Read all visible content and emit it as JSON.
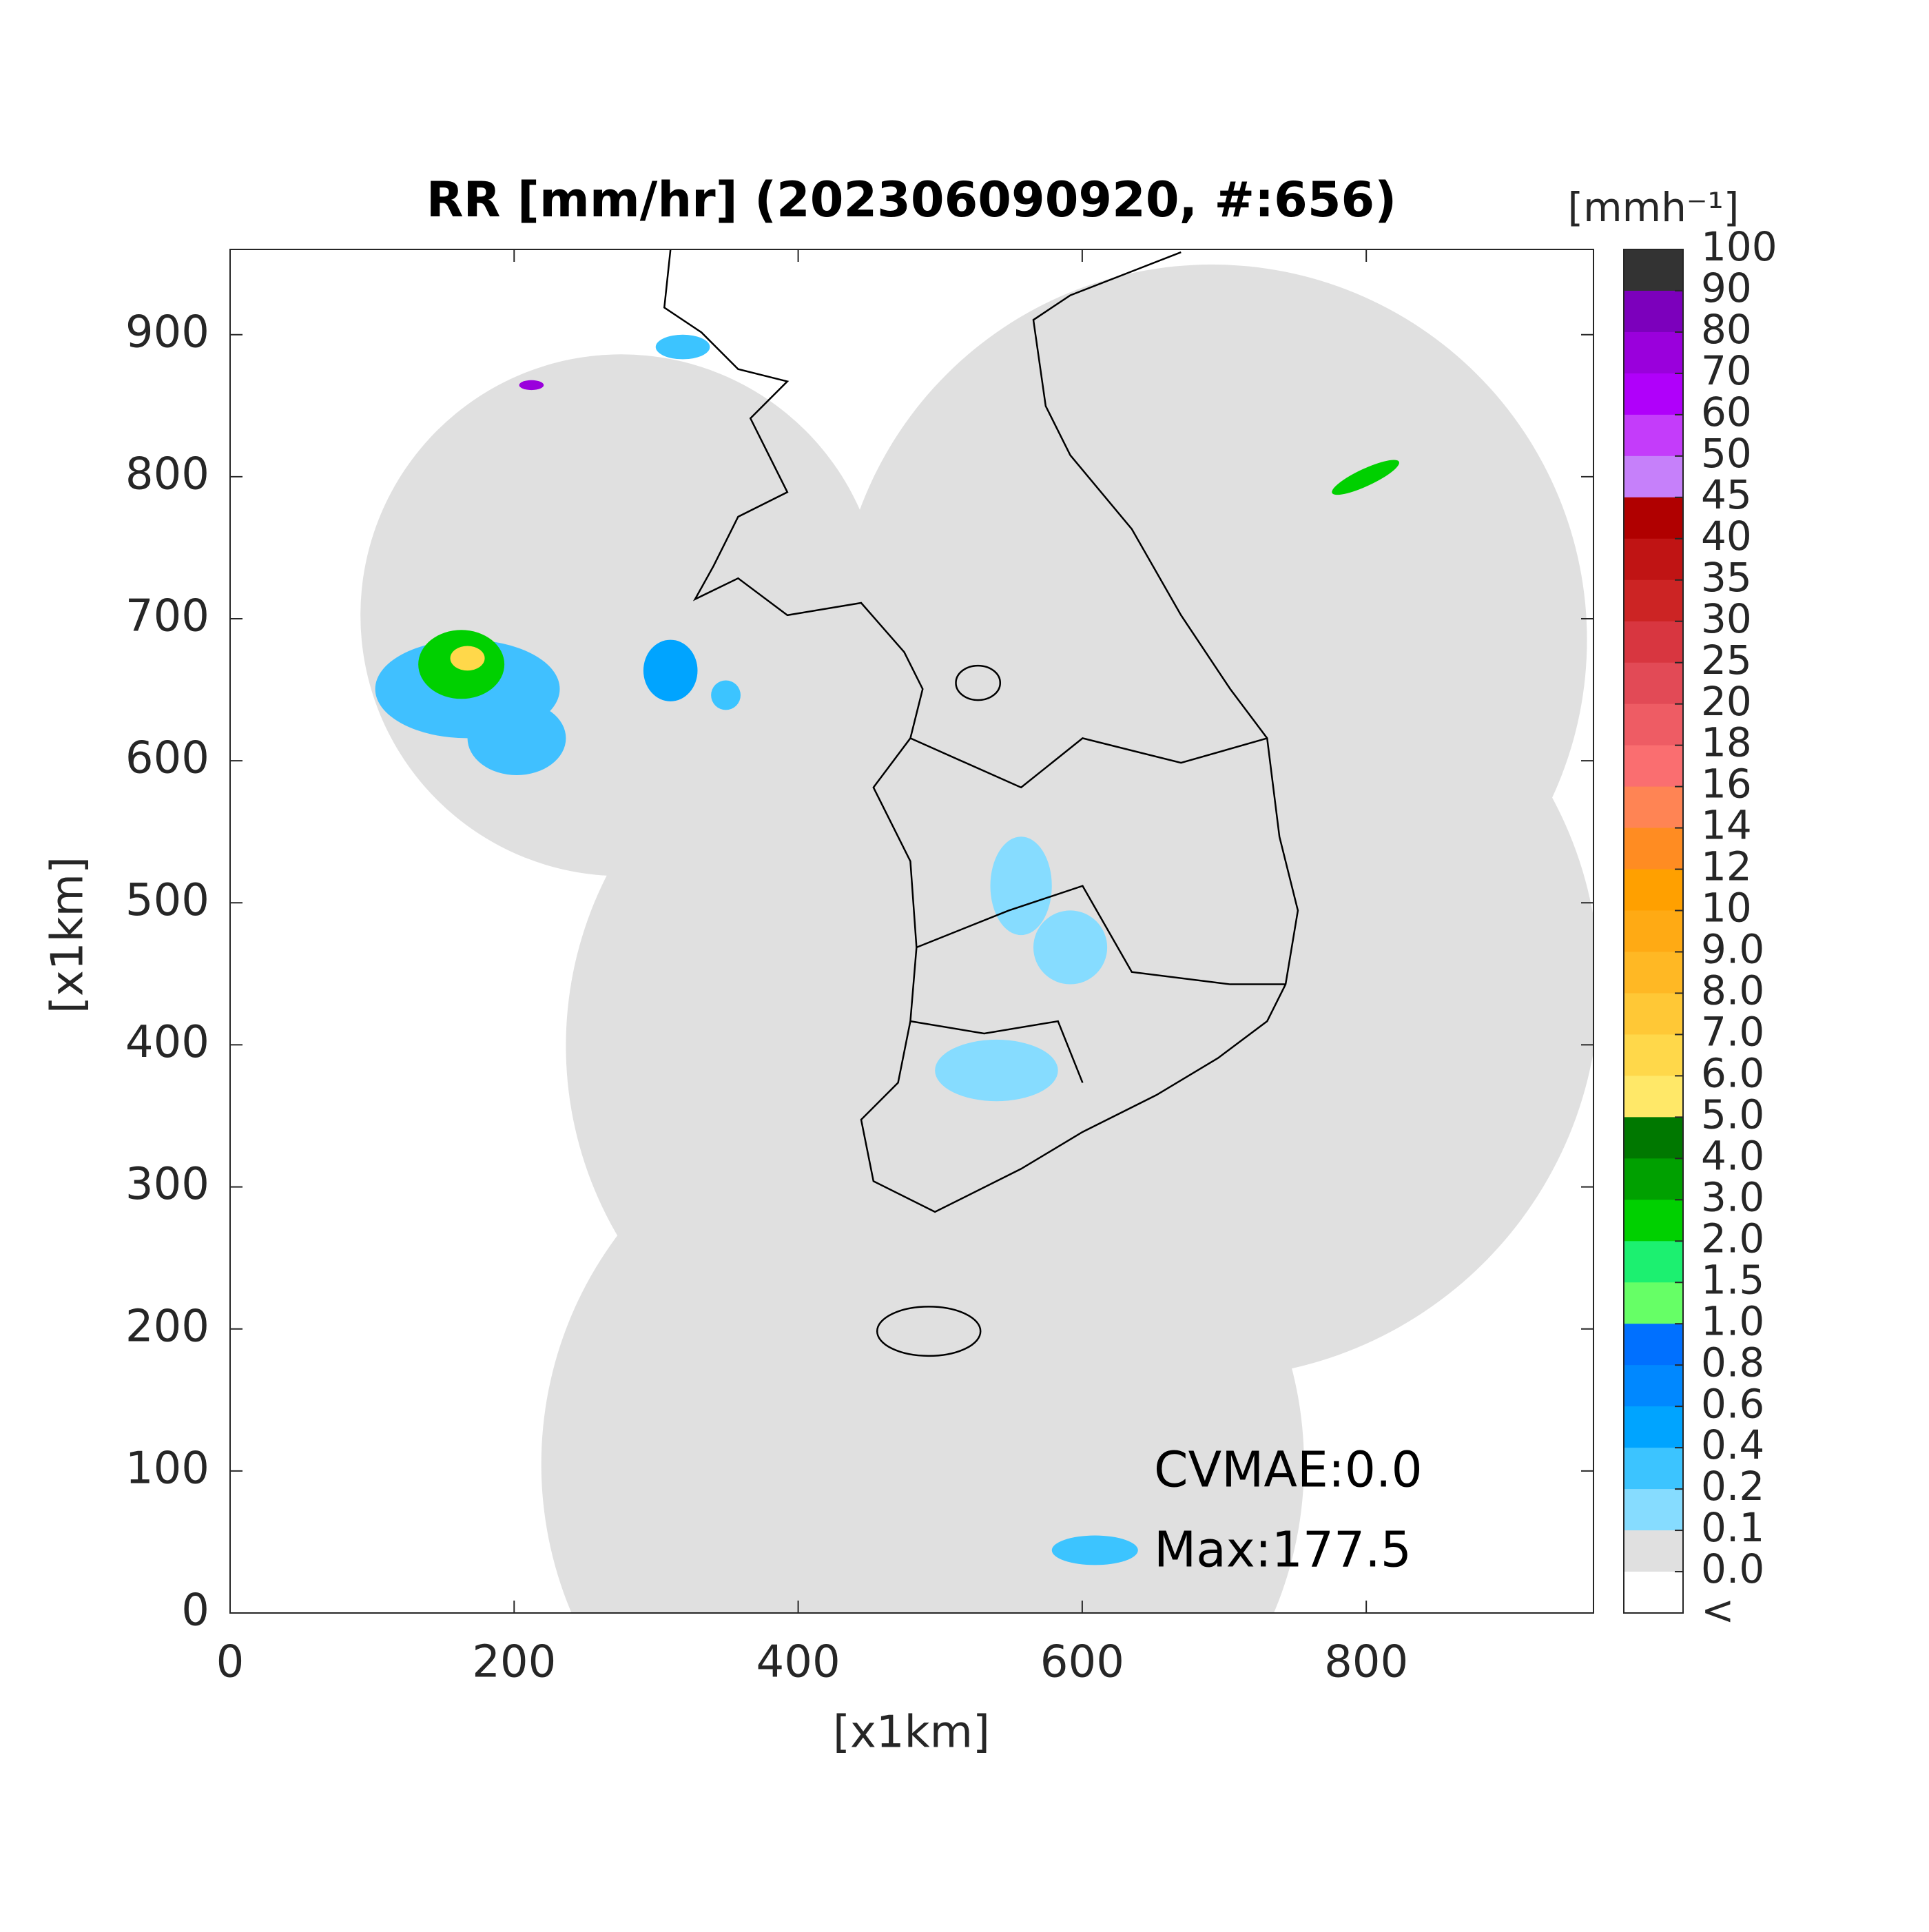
{
  "chart_data": {
    "type": "map",
    "title": "RR [mm/hr] (202306090920, #:656)",
    "xlabel": "[x1km]",
    "ylabel": "[x1km]",
    "xlim": [
      0,
      960
    ],
    "ylim": [
      0,
      960
    ],
    "xticks": [
      0,
      200,
      400,
      600,
      800
    ],
    "yticks": [
      0,
      100,
      200,
      300,
      400,
      500,
      600,
      700,
      800,
      900
    ],
    "annotations": [
      "CVMAE:0.0",
      "Max:177.5"
    ],
    "colorbar": {
      "title": "[mmh⁻¹]",
      "labels": [
        "100",
        "90",
        "80",
        "70",
        "60",
        "50",
        "45",
        "40",
        "35",
        "30",
        "25",
        "20",
        "18",
        "16",
        "14",
        "12",
        "10",
        "9.0",
        "8.0",
        "7.0",
        "6.0",
        "5.0",
        "4.0",
        "3.0",
        "2.0",
        "1.5",
        "1.0",
        "0.8",
        "0.6",
        "0.4",
        "0.2",
        "0.1",
        "0.0",
        "<"
      ],
      "colors": [
        "#333333",
        "#7c00bc",
        "#9a00dc",
        "#b000fa",
        "#c43cfa",
        "#c680fa",
        "#b00000",
        "#c01414",
        "#cc2424",
        "#d83640",
        "#e24a56",
        "#ee5c64",
        "#fa6e70",
        "#ff8454",
        "#ff8c22",
        "#ffa000",
        "#ffaa14",
        "#ffb824",
        "#ffc836",
        "#ffd84a",
        "#ffe868",
        "#007800",
        "#00a000",
        "#00d000",
        "#1cf070",
        "#66ff66",
        "#0070ff",
        "#0088ff",
        "#00a4ff",
        "#3cc4ff",
        "#86dcff",
        "#e0e0e0",
        "#ffffff"
      ]
    }
  }
}
